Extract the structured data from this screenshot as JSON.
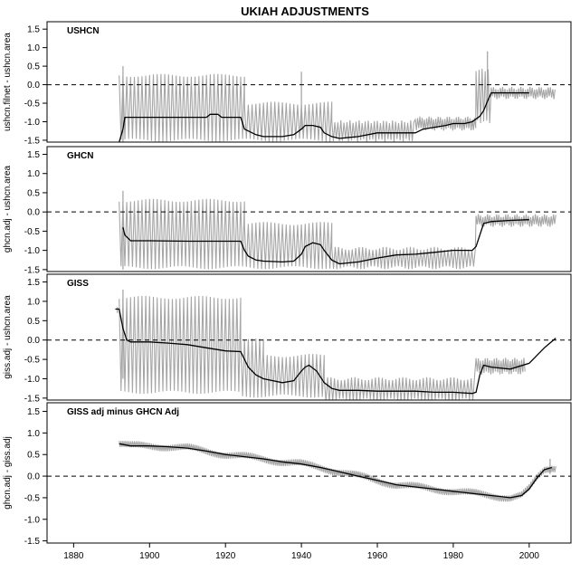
{
  "chart_data": {
    "type": "line",
    "title": "UKIAH   ADJUSTMENTS",
    "xlim": [
      1873,
      2011
    ],
    "x_ticks": [
      1880,
      1900,
      1920,
      1940,
      1960,
      1980,
      2000
    ],
    "y_ticks": [
      1.5,
      1.0,
      0.5,
      0.0,
      -0.5,
      -1.0,
      -1.5
    ],
    "ylim": [
      -1.55,
      1.7
    ],
    "reference_line": 0.0,
    "colors": {
      "raw": "#a6a6a6",
      "smooth": "#000000",
      "zero": "#000000"
    },
    "panels": [
      {
        "label": "USHCN",
        "ylabel": "ushcn.filnet - ushcn.area",
        "smooth": {
          "x": [
            1892,
            1893,
            1893.5,
            1900,
            1910,
            1915,
            1916,
            1918,
            1919,
            1924,
            1925,
            1926,
            1928,
            1930,
            1935,
            1938,
            1940,
            1941,
            1943,
            1945,
            1946,
            1948,
            1950,
            1955,
            1960,
            1965,
            1970,
            1972,
            1975,
            1978,
            1980,
            1983,
            1985,
            1987,
            1988,
            1989,
            1990,
            1995,
            2000
          ],
          "y": [
            -1.55,
            -1.2,
            -0.88,
            -0.88,
            -0.88,
            -0.88,
            -0.8,
            -0.8,
            -0.88,
            -0.88,
            -1.2,
            -1.25,
            -1.35,
            -1.4,
            -1.4,
            -1.35,
            -1.2,
            -1.1,
            -1.1,
            -1.15,
            -1.3,
            -1.4,
            -1.45,
            -1.4,
            -1.3,
            -1.3,
            -1.3,
            -1.2,
            -1.15,
            -1.1,
            -1.05,
            -1.05,
            -1.0,
            -0.85,
            -0.7,
            -0.45,
            -0.22,
            -0.22,
            -0.22
          ]
        },
        "raw": {
          "blocks": [
            {
              "x0": 1892,
              "x1": 1925,
              "hi": 0.25,
              "lo": -1.5,
              "step": 0.5
            },
            {
              "x0": 1925,
              "x1": 1948,
              "hi": -0.5,
              "lo": -1.5,
              "step": 0.5
            },
            {
              "x0": 1948,
              "x1": 1970,
              "hi": -1.0,
              "lo": -1.5,
              "step": 0.4
            },
            {
              "x0": 1970,
              "x1": 1986,
              "hi": -0.9,
              "lo": -1.2,
              "step": 0.3
            },
            {
              "x0": 1986,
              "x1": 1990,
              "hi": 0.4,
              "lo": -1.0,
              "step": 0.4
            },
            {
              "x0": 1990,
              "x1": 2007,
              "hi": -0.1,
              "lo": -0.35,
              "step": 0.3
            }
          ],
          "spikes": [
            {
              "x": 1893,
              "top": 0.5,
              "bottom": -1.55
            },
            {
              "x": 1940,
              "top": 0.35,
              "bottom": -1.2
            },
            {
              "x": 1989,
              "top": 0.9,
              "bottom": -0.7
            }
          ]
        }
      },
      {
        "label": "GHCN",
        "ylabel": "ghcn.adj - ushcn.area",
        "smooth": {
          "x": [
            1893,
            1893.5,
            1895,
            1900,
            1910,
            1920,
            1924,
            1925,
            1926,
            1928,
            1930,
            1935,
            1938,
            1940,
            1941,
            1943,
            1945,
            1946,
            1948,
            1950,
            1955,
            1960,
            1965,
            1970,
            1975,
            1980,
            1985,
            1986,
            1987,
            1988,
            1990,
            1995,
            2000
          ],
          "y": [
            -0.4,
            -0.6,
            -0.75,
            -0.75,
            -0.76,
            -0.76,
            -0.76,
            -1.0,
            -1.15,
            -1.25,
            -1.28,
            -1.3,
            -1.28,
            -1.1,
            -0.9,
            -0.8,
            -0.85,
            -1.0,
            -1.25,
            -1.35,
            -1.3,
            -1.2,
            -1.12,
            -1.1,
            -1.05,
            -1.0,
            -1.0,
            -0.9,
            -0.6,
            -0.3,
            -0.25,
            -0.22,
            -0.2
          ]
        },
        "raw": {
          "blocks": [
            {
              "x0": 1892,
              "x1": 1925,
              "hi": 0.3,
              "lo": -1.45,
              "step": 0.5
            },
            {
              "x0": 1925,
              "x1": 1948,
              "hi": -0.3,
              "lo": -1.45,
              "step": 0.5
            },
            {
              "x0": 1948,
              "x1": 1986,
              "hi": -0.95,
              "lo": -1.45,
              "step": 0.45
            },
            {
              "x0": 1986,
              "x1": 2007,
              "hi": -0.1,
              "lo": -0.35,
              "step": 0.3
            }
          ],
          "spikes": [
            {
              "x": 1893,
              "top": 0.55,
              "bottom": -1.5
            }
          ]
        }
      },
      {
        "label": "GISS",
        "ylabel": "giss.adj - ushcn.area",
        "smooth": {
          "x": [
            1891,
            1892,
            1893,
            1894,
            1895,
            1900,
            1905,
            1910,
            1915,
            1920,
            1924,
            1925,
            1926,
            1928,
            1930,
            1935,
            1938,
            1940,
            1941,
            1942,
            1944,
            1946,
            1948,
            1950,
            1955,
            1960,
            1965,
            1970,
            1975,
            1980,
            1985,
            1986,
            1987,
            1988,
            1990,
            1995,
            2000,
            2004,
            2007
          ],
          "y": [
            0.8,
            0.8,
            0.3,
            0.0,
            -0.05,
            -0.05,
            -0.08,
            -0.12,
            -0.2,
            -0.28,
            -0.3,
            -0.5,
            -0.7,
            -0.9,
            -1.0,
            -1.1,
            -1.05,
            -0.8,
            -0.7,
            -0.65,
            -0.8,
            -1.1,
            -1.25,
            -1.3,
            -1.3,
            -1.32,
            -1.32,
            -1.32,
            -1.35,
            -1.35,
            -1.38,
            -1.35,
            -0.9,
            -0.65,
            -0.7,
            -0.75,
            -0.6,
            -0.2,
            0.05
          ]
        },
        "raw": {
          "blocks": [
            {
              "x0": 1892,
              "x1": 1924,
              "hi": 1.1,
              "lo": -1.35,
              "step": 0.5
            },
            {
              "x0": 1924,
              "x1": 1930,
              "hi": 0.0,
              "lo": -1.45,
              "step": 0.5
            },
            {
              "x0": 1930,
              "x1": 1946,
              "hi": -0.4,
              "lo": -1.45,
              "step": 0.5
            },
            {
              "x0": 1946,
              "x1": 1986,
              "hi": -1.0,
              "lo": -1.55,
              "step": 0.45
            },
            {
              "x0": 1986,
              "x1": 1999,
              "hi": -0.5,
              "lo": -0.85,
              "step": 0.3
            }
          ],
          "spikes": [
            {
              "x": 1891.5,
              "top": 0.85,
              "bottom": 0.7
            },
            {
              "x": 1893,
              "top": 1.3,
              "bottom": -1.0
            }
          ]
        }
      },
      {
        "label": "GISS adj minus GHCN Adj",
        "ylabel": "ghcn.adj - giss.adj",
        "smooth": {
          "x": [
            1892,
            1895,
            1900,
            1905,
            1910,
            1915,
            1920,
            1925,
            1930,
            1935,
            1940,
            1945,
            1950,
            1955,
            1960,
            1965,
            1970,
            1975,
            1980,
            1985,
            1990,
            1995,
            1998,
            2000,
            2002,
            2004,
            2006
          ],
          "y": [
            0.75,
            0.7,
            0.7,
            0.68,
            0.65,
            0.58,
            0.5,
            0.45,
            0.4,
            0.33,
            0.28,
            0.2,
            0.1,
            0.0,
            -0.1,
            -0.2,
            -0.25,
            -0.3,
            -0.35,
            -0.4,
            -0.45,
            -0.5,
            -0.45,
            -0.3,
            -0.05,
            0.15,
            0.2
          ]
        },
        "raw": {
          "blocks": [
            {
              "x0": 1892,
              "x1": 2007,
              "hi": 0.07,
              "lo": -0.07,
              "step": 0.25,
              "relative": true
            }
          ],
          "spikes": [
            {
              "x": 2005.5,
              "top": 0.4,
              "bottom": 0.05
            }
          ]
        }
      }
    ]
  }
}
